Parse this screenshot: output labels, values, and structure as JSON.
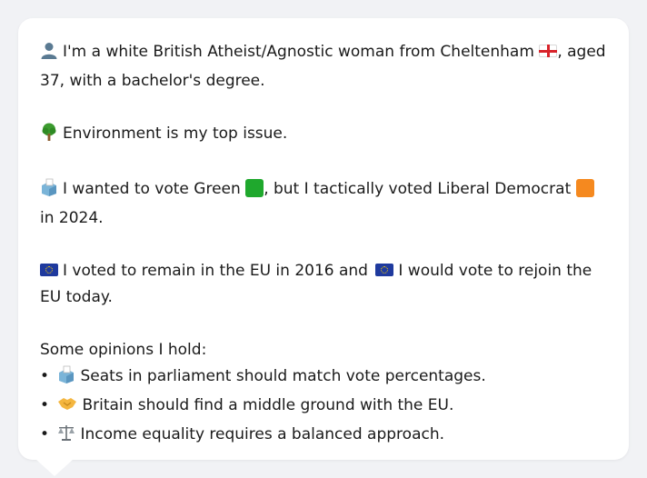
{
  "intro": {
    "text_before_flag": "I'm a white British Atheist/Agnostic woman from Cheltenham",
    "text_after_flag": ", aged 37, with a bachelor's degree."
  },
  "top_issue": {
    "text": "Environment is my top issue."
  },
  "vote_2024": {
    "text_a": "I wanted to vote Green",
    "text_b": ", but I tactically voted Liberal Democrat",
    "text_c": " in 2024.",
    "green_color": "#1fa82d",
    "libdem_color": "#f5891f"
  },
  "eu": {
    "text_a": "I voted to remain in the EU in 2016 and",
    "text_b": "I would vote to rejoin the EU today."
  },
  "opinions": {
    "heading": "Some opinions I hold:",
    "items": [
      {
        "icon": "ballot-box-icon",
        "glyph": "🗳️",
        "text": "Seats in parliament should match vote percentages."
      },
      {
        "icon": "handshake-icon",
        "glyph": "🤝",
        "text": "Britain should find a middle ground with the EU."
      },
      {
        "icon": "scales-icon",
        "glyph": "⚖️",
        "text": "Income equality requires a balanced approach."
      }
    ],
    "bullet": "•"
  }
}
